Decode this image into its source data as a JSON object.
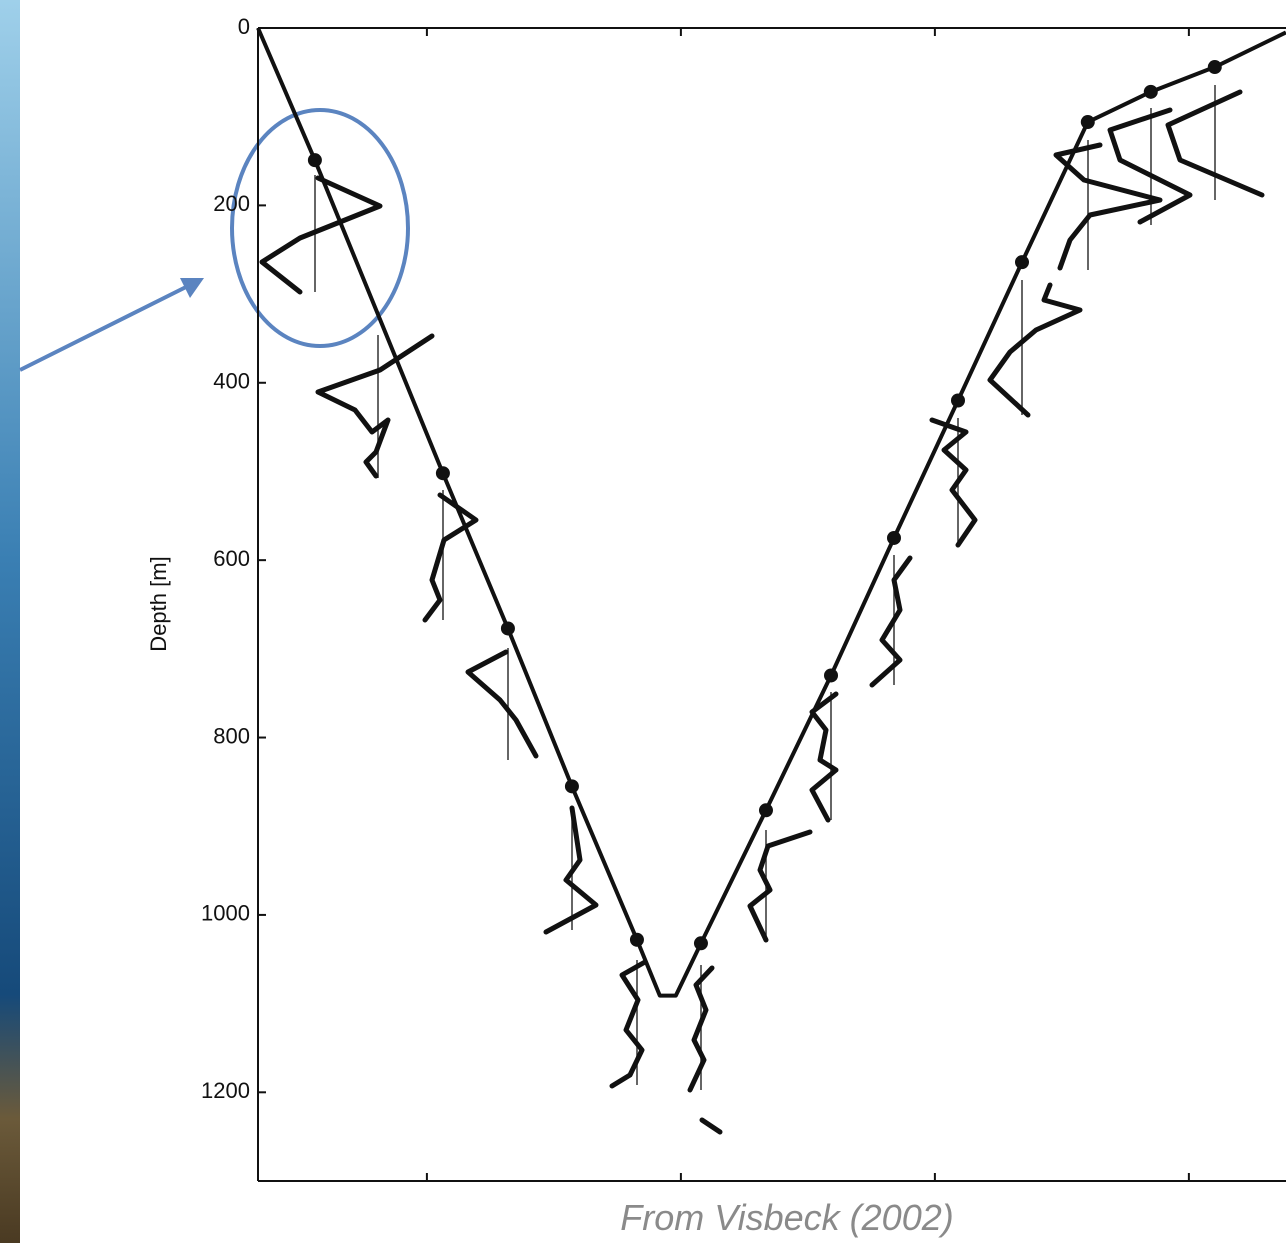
{
  "chart_data": {
    "type": "line",
    "ylabel": "Depth [m]",
    "caption": "From Visbeck (2002)",
    "ylim": [
      0,
      1300
    ],
    "yticks": [
      0,
      200,
      400,
      600,
      800,
      1000,
      1200
    ],
    "y_inverted": true,
    "xlim": [
      -0.665,
      3.382
    ],
    "xticks": [
      0,
      1,
      2,
      3
    ],
    "grid": false,
    "series": [
      {
        "color": "#111111",
        "markers": false,
        "x": [
          -0.665,
          -0.441,
          0.063,
          0.319,
          0.571,
          0.827,
          0.917,
          0.98,
          1.079,
          1.335,
          1.591,
          1.839,
          2.091,
          2.343,
          2.602,
          2.85,
          3.102,
          3.382
        ],
        "values": [
          0,
          149,
          502,
          677,
          855,
          1028,
          1091,
          1091,
          1032,
          882,
          730,
          575,
          420,
          264,
          106,
          72,
          44,
          5
        ]
      },
      {
        "color": "#111111",
        "markers": true,
        "line": false,
        "x": [
          -0.441,
          0.063,
          0.319,
          0.571,
          0.827,
          1.079,
          1.335,
          1.591,
          1.839,
          2.091,
          2.343,
          2.602,
          2.85,
          3.102
        ],
        "values": [
          149,
          502,
          677,
          855,
          1028,
          1032,
          882,
          730,
          575,
          420,
          264,
          106,
          72,
          44
        ]
      }
    ]
  }
}
